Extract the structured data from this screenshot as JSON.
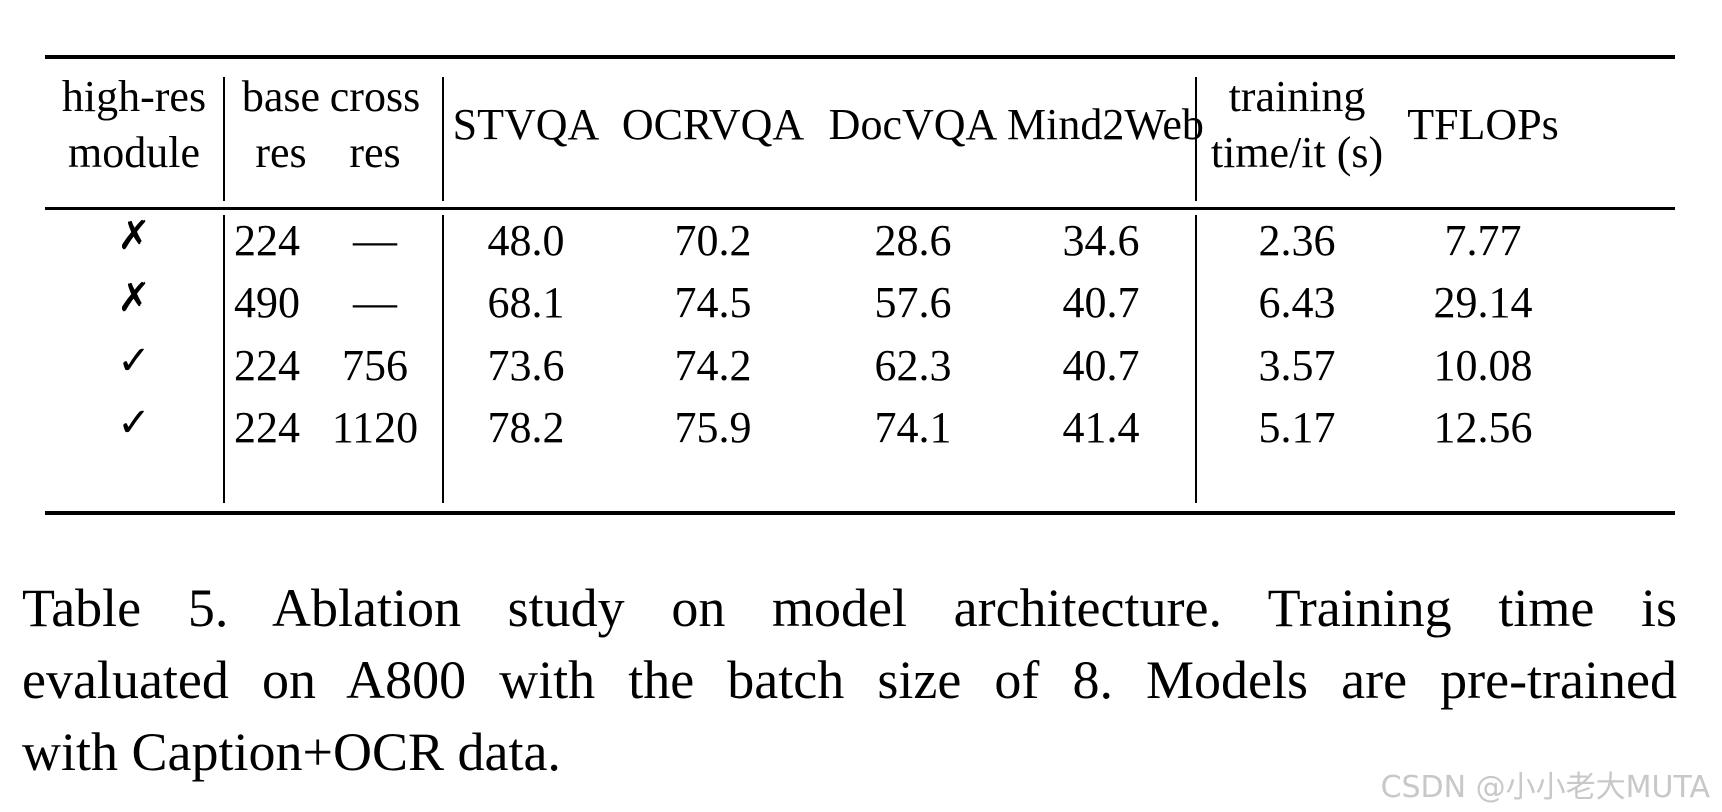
{
  "table": {
    "header": {
      "high_res_module_line1": "high-res",
      "high_res_module_line2": "module",
      "base_res_line1": "base",
      "base_res_line2": "res",
      "cross_res_line1": "cross",
      "cross_res_line2": "res",
      "stvqa": "STVQA",
      "ocrvqa": "OCRVQA",
      "docvqa": "DocVQA",
      "mind2web": "Mind2Web",
      "training_line1": "training",
      "training_line2": "time/it (s)",
      "tflops": "TFLOPs"
    },
    "rows": [
      {
        "high_res": "✗",
        "base_res": "224",
        "cross_res": "—",
        "stvqa": "48.0",
        "ocrvqa": "70.2",
        "docvqa": "28.6",
        "mind2web": "34.6",
        "training_time": "2.36",
        "tflops": "7.77"
      },
      {
        "high_res": "✗",
        "base_res": "490",
        "cross_res": "—",
        "stvqa": "68.1",
        "ocrvqa": "74.5",
        "docvqa": "57.6",
        "mind2web": "40.7",
        "training_time": "6.43",
        "tflops": "29.14"
      },
      {
        "high_res": "✓",
        "base_res": "224",
        "cross_res": "756",
        "stvqa": "73.6",
        "ocrvqa": "74.2",
        "docvqa": "62.3",
        "mind2web": "40.7",
        "training_time": "3.57",
        "tflops": "10.08"
      },
      {
        "high_res": "✓",
        "base_res": "224",
        "cross_res": "1120",
        "stvqa": "78.2",
        "ocrvqa": "75.9",
        "docvqa": "74.1",
        "mind2web": "41.4",
        "training_time": "5.17",
        "tflops": "12.56"
      }
    ]
  },
  "caption": {
    "line1": "Table 5.  Ablation study on model architecture.  Training time is",
    "line2": "evaluated on A800 with the batch size of 8. Models are pre-trained",
    "line3": "with Caption+OCR data."
  },
  "watermark": "CSDN @小小老大MUTA"
}
